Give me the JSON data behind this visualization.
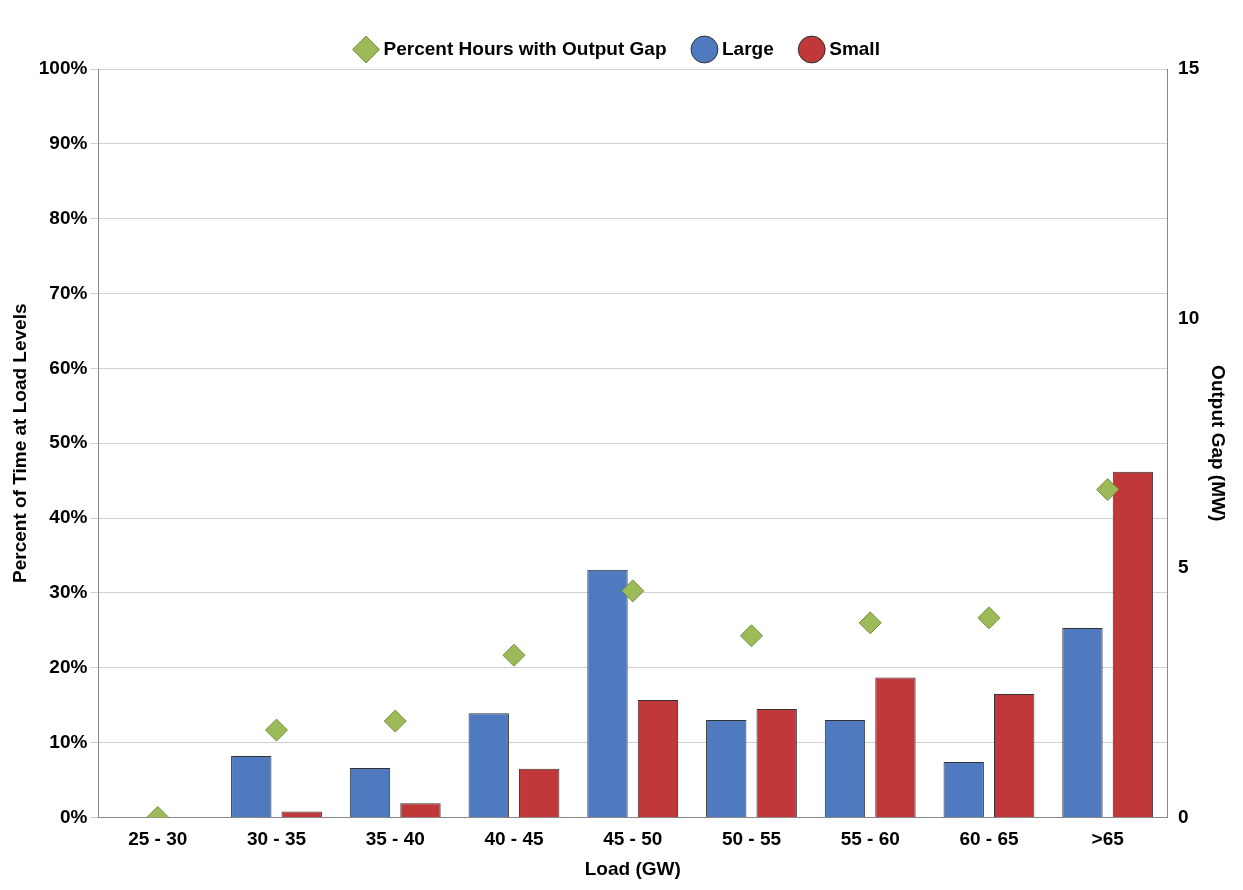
{
  "chart_data": {
    "type": "bar",
    "xlabel": "Load (GW)",
    "ylabel": "Percent of Time at Load Levels",
    "y2label": "Output Gap (MW)",
    "categories": [
      "25 - 30",
      "30 - 35",
      "35 - 40",
      "40 - 45",
      "45 - 50",
      "50 - 55",
      "55 - 60",
      "60 - 65",
      ">65"
    ],
    "series": [
      {
        "name": "Large",
        "color": "#4f7ac0",
        "values": [
          0,
          8.2,
          6.6,
          13.9,
          33.1,
          13.0,
          13.0,
          7.4,
          25.3
        ]
      },
      {
        "name": "Small",
        "color": "#c0383a",
        "values": [
          0,
          0.8,
          1.9,
          6.5,
          15.7,
          14.5,
          18.7,
          16.5,
          46.2
        ]
      },
      {
        "name": "Percent Hours with Output Gap",
        "type": "scatter",
        "axis": "y2",
        "marker": "diamond",
        "color": "#9cba58",
        "values": [
          0,
          1.75,
          1.93,
          3.25,
          4.54,
          3.64,
          3.9,
          4.0,
          6.57
        ]
      }
    ],
    "ylim": [
      0,
      100
    ],
    "yticks": [
      {
        "value": 0,
        "label": "0%"
      },
      {
        "value": 10,
        "label": "10%"
      },
      {
        "value": 20,
        "label": "20%"
      },
      {
        "value": 30,
        "label": "30%"
      },
      {
        "value": 40,
        "label": "40%"
      },
      {
        "value": 50,
        "label": "50%"
      },
      {
        "value": 60,
        "label": "60%"
      },
      {
        "value": 70,
        "label": "70%"
      },
      {
        "value": 80,
        "label": "80%"
      },
      {
        "value": 90,
        "label": "90%"
      },
      {
        "value": 100,
        "label": "100%"
      }
    ],
    "y2lim": [
      0,
      15
    ],
    "y2ticks": [
      0,
      5,
      10,
      15
    ],
    "grid": "y",
    "legend": "top"
  }
}
